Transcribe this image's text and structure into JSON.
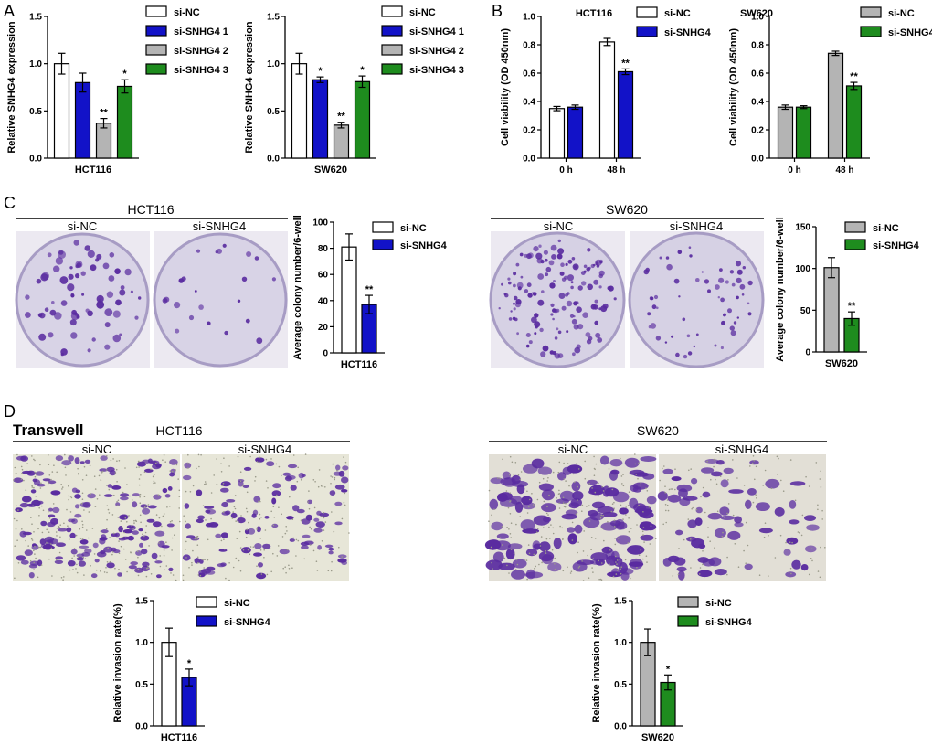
{
  "colors": {
    "white": "#ffffff",
    "blue": "#1212c8",
    "gray": "#b4b4b4",
    "green": "#1e8c1e",
    "purple": "#5a2ca0",
    "plate": "#ddd9e8",
    "field": "#e6e4d6"
  },
  "panels": [
    {
      "letter": "A"
    },
    {
      "letter": "B"
    },
    {
      "letter": "C"
    },
    {
      "letter": "D"
    }
  ],
  "images": {
    "C_hct_title": "HCT116",
    "C_hct_nc": "si-NC",
    "C_hct_sn": "si-SNHG4",
    "C_sw_title": "SW620",
    "C_sw_nc": "si-NC",
    "C_sw_sn": "si-SNHG4",
    "D_title": "Transwell",
    "D_hct_title": "HCT116",
    "D_hct_nc": "si-NC",
    "D_hct_sn": "si-SNHG4",
    "D_sw_title": "SW620",
    "D_sw_nc": "si-NC",
    "D_sw_sn": "si-SNHG4"
  },
  "chart_data": [
    {
      "id": "A1",
      "type": "bar",
      "title": "",
      "ylabel": "Relative SNHG4 expression",
      "xlabel": "HCT116",
      "ylim": [
        0,
        1.5
      ],
      "yticks": [
        "0.0",
        "0.5",
        "1.0",
        "1.5"
      ],
      "categories": [
        "si-NC",
        "si-SNHG4 1",
        "si-SNHG4 2",
        "si-SNHG4 3"
      ],
      "values": [
        1.0,
        0.8,
        0.37,
        0.76
      ],
      "errors": [
        0.11,
        0.1,
        0.05,
        0.07
      ],
      "sig": [
        "",
        "",
        "**",
        "*"
      ],
      "colors": [
        "white",
        "blue",
        "gray",
        "green"
      ],
      "legend": [
        "si-NC",
        "si-SNHG4 1",
        "si-SNHG4 2",
        "si-SNHG4 3"
      ]
    },
    {
      "id": "A2",
      "type": "bar",
      "title": "",
      "ylabel": "Relative SNHG4 expression",
      "xlabel": "SW620",
      "ylim": [
        0,
        1.5
      ],
      "yticks": [
        "0.0",
        "0.5",
        "1.0",
        "1.5"
      ],
      "categories": [
        "si-NC",
        "si-SNHG4 1",
        "si-SNHG4 2",
        "si-SNHG4 3"
      ],
      "values": [
        1.0,
        0.83,
        0.35,
        0.81
      ],
      "errors": [
        0.11,
        0.03,
        0.03,
        0.06
      ],
      "sig": [
        "",
        "*",
        "**",
        "*"
      ],
      "colors": [
        "white",
        "blue",
        "gray",
        "green"
      ],
      "legend": [
        "si-NC",
        "si-SNHG4 1",
        "si-SNHG4 2",
        "si-SNHG4 3"
      ]
    },
    {
      "id": "B1",
      "type": "bar",
      "title": "HCT116",
      "ylabel": "Cell viability (OD 450nm)",
      "xlabel": "",
      "ylim": [
        0,
        1.0
      ],
      "yticks": [
        "0.0",
        "0.2",
        "0.4",
        "0.6",
        "0.8",
        "1.0"
      ],
      "categories": [
        "0 h",
        "48 h"
      ],
      "series": [
        {
          "name": "si-NC",
          "values": [
            0.35,
            0.82
          ],
          "errors": [
            0.015,
            0.025
          ]
        },
        {
          "name": "si-SNHG4",
          "values": [
            0.36,
            0.61
          ],
          "errors": [
            0.015,
            0.02
          ]
        }
      ],
      "sig": [
        "",
        "",
        "",
        "**"
      ],
      "colors": [
        "white",
        "blue"
      ],
      "legend": [
        "si-NC",
        "si-SNHG4"
      ]
    },
    {
      "id": "B2",
      "type": "bar",
      "title": "SW620",
      "ylabel": "Cell viability (OD 450nm)",
      "xlabel": "",
      "ylim": [
        0,
        1.0
      ],
      "yticks": [
        "0.0",
        "0.2",
        "0.4",
        "0.6",
        "0.8",
        "1.0"
      ],
      "categories": [
        "0 h",
        "48 h"
      ],
      "series": [
        {
          "name": "si-NC",
          "values": [
            0.36,
            0.74
          ],
          "errors": [
            0.015,
            0.015
          ]
        },
        {
          "name": "si-SNHG4",
          "values": [
            0.36,
            0.51
          ],
          "errors": [
            0.01,
            0.025
          ]
        }
      ],
      "sig": [
        "",
        "",
        "",
        "**"
      ],
      "colors": [
        "gray",
        "green"
      ],
      "legend": [
        "si-NC",
        "si-SNHG4"
      ]
    },
    {
      "id": "C1",
      "type": "bar",
      "title": "",
      "ylabel": "Average colony number/6-well",
      "xlabel": "HCT116",
      "ylim": [
        0,
        100
      ],
      "yticks": [
        "0",
        "20",
        "40",
        "60",
        "80",
        "100"
      ],
      "categories": [
        "si-NC",
        "si-SNHG4"
      ],
      "values": [
        81,
        37
      ],
      "errors": [
        10,
        7
      ],
      "sig": [
        "",
        "**"
      ],
      "colors": [
        "white",
        "blue"
      ],
      "legend": [
        "si-NC",
        "si-SNHG4"
      ]
    },
    {
      "id": "C2",
      "type": "bar",
      "title": "",
      "ylabel": "Average colony number/6-well",
      "xlabel": "SW620",
      "ylim": [
        0,
        150
      ],
      "yticks": [
        "0",
        "50",
        "100",
        "150"
      ],
      "categories": [
        "si-NC",
        "si-SNHG4"
      ],
      "values": [
        101,
        40
      ],
      "errors": [
        12,
        8
      ],
      "sig": [
        "",
        "**"
      ],
      "colors": [
        "gray",
        "green"
      ],
      "legend": [
        "si-NC",
        "si-SNHG4"
      ]
    },
    {
      "id": "D1",
      "type": "bar",
      "title": "",
      "ylabel": "Relative invasion rate(%)",
      "xlabel": "HCT116",
      "ylim": [
        0,
        1.5
      ],
      "yticks": [
        "0.0",
        "0.5",
        "1.0",
        "1.5"
      ],
      "categories": [
        "si-NC",
        "si-SNHG4"
      ],
      "values": [
        1.0,
        0.58
      ],
      "errors": [
        0.17,
        0.1
      ],
      "sig": [
        "",
        "*"
      ],
      "colors": [
        "white",
        "blue"
      ],
      "legend": [
        "si-NC",
        "si-SNHG4"
      ]
    },
    {
      "id": "D2",
      "type": "bar",
      "title": "",
      "ylabel": "Relative invasion rate(%)",
      "xlabel": "SW620",
      "ylim": [
        0,
        1.5
      ],
      "yticks": [
        "0.0",
        "0.5",
        "1.0",
        "1.5"
      ],
      "categories": [
        "si-NC",
        "si-SNHG4"
      ],
      "values": [
        1.0,
        0.52
      ],
      "errors": [
        0.16,
        0.09
      ],
      "sig": [
        "",
        "*"
      ],
      "colors": [
        "gray",
        "green"
      ],
      "legend": [
        "si-NC",
        "si-SNHG4"
      ]
    }
  ]
}
